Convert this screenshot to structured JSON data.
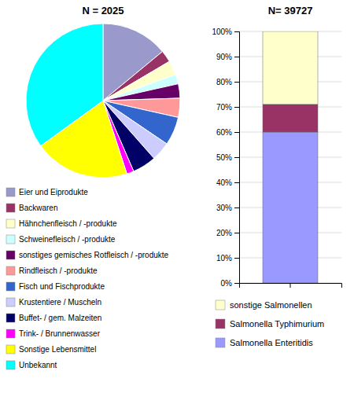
{
  "chart_data": [
    {
      "type": "pie",
      "title": "N = 2025",
      "categories": [
        "Eier und Eiprodukte",
        "Backwaren",
        "Hähnchenfleisch / -produkte",
        "Schweinefleisch / -produkte",
        "sonstiges gemisches Rotfleisch / -produkte",
        "Rindfleisch / -produkte",
        "Fisch und Fischprodukte",
        "Krustentiere / Muscheln",
        "Buffet- / gem. Malzeiten",
        "Trink- / Brunnenwasser",
        "Sonstige Lebensmittel",
        "Unbekannt"
      ],
      "values": [
        14.0,
        2.5,
        3.0,
        2.0,
        3.0,
        4.0,
        6.0,
        4.0,
        5.0,
        1.5,
        20.0,
        35.0
      ],
      "colors": [
        "#9999CC",
        "#993366",
        "#FFFFCC",
        "#CCFFFF",
        "#660066",
        "#FF9999",
        "#3366CC",
        "#CCCCFF",
        "#000066",
        "#FF00FF",
        "#FFFF00",
        "#00FFFF"
      ],
      "legend": "bottom"
    },
    {
      "type": "bar",
      "title": "N= 39727",
      "stacked": true,
      "grid": true,
      "legend": "bottom",
      "categories": [
        null
      ],
      "series": [
        {
          "name": "Salmonella Enteritidis",
          "color": "#9999FF",
          "values": [
            60.0
          ]
        },
        {
          "name": "Salmonella Typhimurium",
          "color": "#993366",
          "values": [
            11.0
          ]
        },
        {
          "name": "sonstige Salmonellen",
          "color": "#FFFFCC",
          "values": [
            29.0
          ]
        }
      ],
      "ylim": [
        0,
        100
      ],
      "yticks": [
        {
          "value": 0,
          "label": "0%"
        },
        {
          "value": 10,
          "label": "10%"
        },
        {
          "value": 20,
          "label": "20%"
        },
        {
          "value": 30,
          "label": "30%"
        },
        {
          "value": 40,
          "label": "40%"
        },
        {
          "value": 50,
          "label": "50%"
        },
        {
          "value": 60,
          "label": "60%"
        },
        {
          "value": 70,
          "label": "70%"
        },
        {
          "value": 80,
          "label": "80%"
        },
        {
          "value": 90,
          "label": "90%"
        },
        {
          "value": 100,
          "label": "100%"
        }
      ]
    }
  ]
}
